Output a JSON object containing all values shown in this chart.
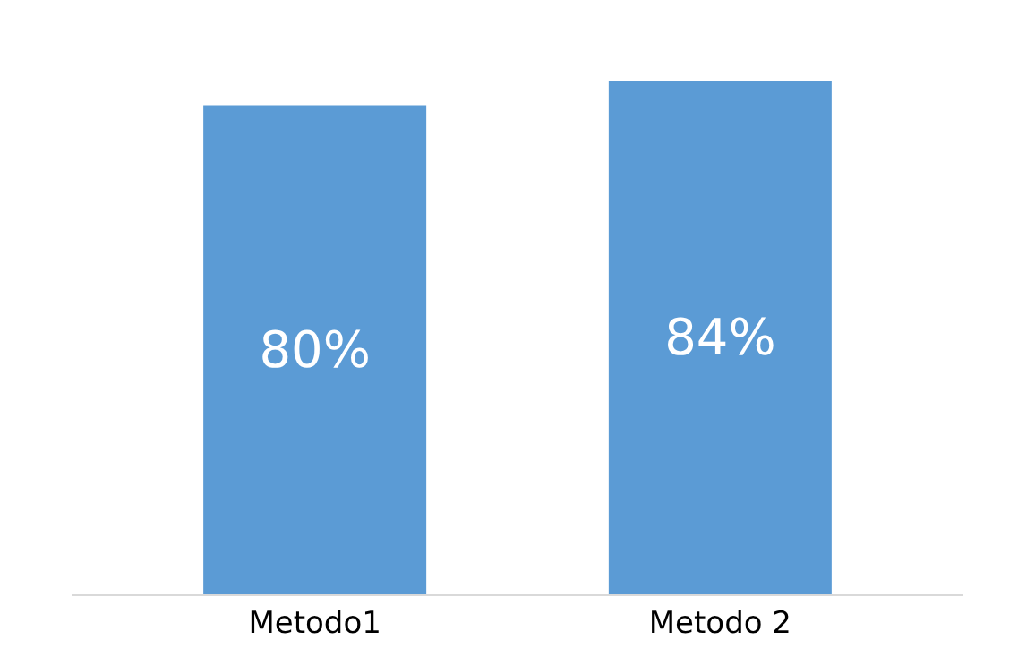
{
  "chart_data": {
    "type": "bar",
    "categories": [
      "Metodo1",
      "Metodo 2"
    ],
    "values": [
      80,
      84
    ],
    "value_labels": [
      "80%",
      "84%"
    ],
    "color": "#5b9bd5",
    "grid": false,
    "legend": false
  }
}
